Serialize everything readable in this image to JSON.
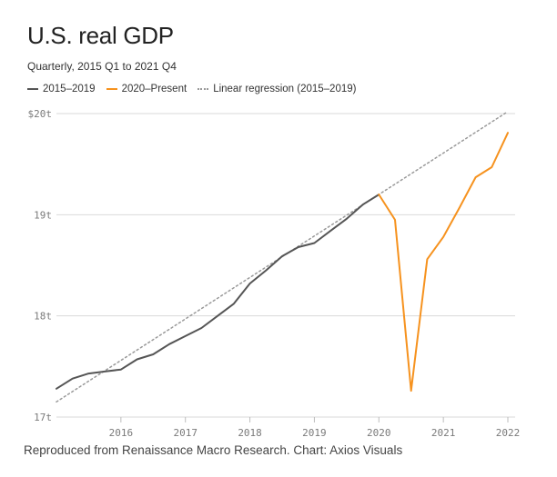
{
  "title": "U.S. real GDP",
  "subtitle": "Quarterly, 2015 Q1 to 2021 Q4",
  "legend": {
    "series1": "2015–2019",
    "series2": "2020–Present",
    "regression": "Linear regression (2015–2019)"
  },
  "source": "Reproduced from Renaissance Macro Research. Chart: Axios Visuals",
  "colors": {
    "series1": "#555555",
    "series2": "#f6921e",
    "regression": "#999999",
    "grid": "#d9d9d9"
  },
  "chart_data": {
    "type": "line",
    "title": "U.S. real GDP",
    "xlabel": "",
    "ylabel": "",
    "x_ticks": [
      2016,
      2017,
      2018,
      2019,
      2020,
      2021,
      2022
    ],
    "x_tick_labels": [
      "2016",
      "2017",
      "2018",
      "2019",
      "2020",
      "2021",
      "2022"
    ],
    "xlim": [
      2015,
      2022
    ],
    "y_ticks": [
      17,
      18,
      19,
      20
    ],
    "y_tick_labels": [
      "17t",
      "18t",
      "19t",
      "$20t"
    ],
    "ylim": [
      17,
      20
    ],
    "series": [
      {
        "name": "2015–2019",
        "x": [
          2015.0,
          2015.25,
          2015.5,
          2015.75,
          2016.0,
          2016.25,
          2016.5,
          2016.75,
          2017.0,
          2017.25,
          2017.5,
          2017.75,
          2018.0,
          2018.25,
          2018.5,
          2018.75,
          2019.0,
          2019.25,
          2019.5,
          2019.75,
          2020.0
        ],
        "values": [
          17.28,
          17.38,
          17.43,
          17.45,
          17.47,
          17.57,
          17.62,
          17.72,
          17.8,
          17.88,
          18.0,
          18.12,
          18.32,
          18.45,
          18.59,
          18.68,
          18.72,
          18.84,
          18.96,
          19.1,
          19.2
        ]
      },
      {
        "name": "2020–Present",
        "x": [
          2020.0,
          2020.25,
          2020.5,
          2020.75,
          2021.0,
          2021.25,
          2021.5,
          2021.75,
          2022.0
        ],
        "values": [
          19.2,
          18.95,
          17.26,
          18.56,
          18.78,
          19.07,
          19.37,
          19.47,
          19.81
        ]
      },
      {
        "name": "Linear regression (2015–2019)",
        "x": [
          2015.0,
          2022.0
        ],
        "values": [
          17.15,
          20.02
        ]
      }
    ]
  }
}
